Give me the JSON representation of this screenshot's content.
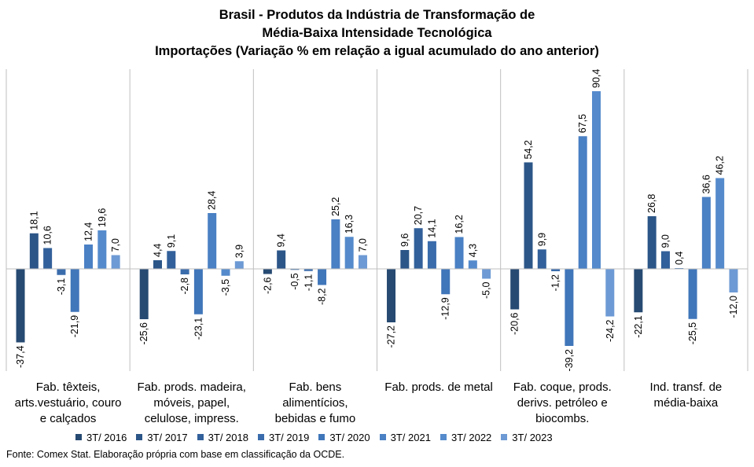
{
  "chart_data": {
    "type": "bar",
    "title_lines": [
      "Brasil - Produtos da Indústria de Transformação de",
      "Média-Baixa Intensidade Tecnológica",
      "Importações (Variação % em relação a igual acumulado do ano anterior)"
    ],
    "categories": [
      [
        "Fab. têxteis,",
        "arts.vestuário, couro",
        "e calçados"
      ],
      [
        "Fab. prods. madeira,",
        "móveis, papel,",
        "celulose, impress."
      ],
      [
        "Fab. bens",
        "alimentícios,",
        "bebidas e fumo"
      ],
      [
        "Fab. prods. de metal"
      ],
      [
        "Fab. coque, prods.",
        "derivs. petróleo e",
        "biocombs."
      ],
      [
        "Ind. transf. de",
        "média-baixa"
      ]
    ],
    "series": [
      {
        "name": "3T/ 2016",
        "color": "#264a72",
        "values": [
          -37.4,
          -25.6,
          -2.6,
          -27.2,
          -20.6,
          -22.1
        ],
        "labels": [
          "-37,4",
          "-25,6",
          "-2,6",
          "-27,2",
          "-20,6",
          "-22,1"
        ]
      },
      {
        "name": "3T/ 2017",
        "color": "#2c5688",
        "values": [
          18.1,
          4.4,
          9.4,
          9.6,
          54.2,
          26.8
        ],
        "labels": [
          "18,1",
          "4,4",
          "9,4",
          "9,6",
          "54,2",
          "26,8"
        ]
      },
      {
        "name": "3T/ 2018",
        "color": "#32609a",
        "values": [
          10.6,
          9.1,
          -0.5,
          20.7,
          9.9,
          9.0
        ],
        "labels": [
          "10,6",
          "9,1",
          "-0,5",
          "20,7",
          "9,9",
          "9,0"
        ]
      },
      {
        "name": "3T/ 2019",
        "color": "#3a6cac",
        "values": [
          -3.1,
          -2.8,
          -1.1,
          14.1,
          -1.2,
          0.4
        ],
        "labels": [
          "-3,1",
          "-2,8",
          "-1,1",
          "14,1",
          "-1,2",
          "0,4"
        ]
      },
      {
        "name": "3T/ 2020",
        "color": "#4076ba",
        "values": [
          -21.9,
          -23.1,
          -8.2,
          -12.9,
          -39.2,
          -25.5
        ],
        "labels": [
          "-21,9",
          "-23,1",
          "-8,2",
          "-12,9",
          "-39,2",
          "-25,5"
        ]
      },
      {
        "name": "3T/ 2021",
        "color": "#4a80c4",
        "values": [
          12.4,
          28.4,
          25.2,
          16.2,
          67.5,
          36.6
        ],
        "labels": [
          "12,4",
          "28,4",
          "25,2",
          "16,2",
          "67,5",
          "36,6"
        ]
      },
      {
        "name": "3T/ 2022",
        "color": "#558bcc",
        "values": [
          19.6,
          -3.5,
          16.3,
          4.3,
          90.4,
          46.2
        ],
        "labels": [
          "19,6",
          "-3,5",
          "16,3",
          "4,3",
          "90,4",
          "46,2"
        ]
      },
      {
        "name": "3T/ 2023",
        "color": "#6d9ad4",
        "values": [
          7.0,
          3.9,
          7.0,
          -5.0,
          -24.2,
          -12.0
        ],
        "labels": [
          "7,0",
          "3,9",
          "7,0",
          "-5,0",
          "-24,2",
          "-12,0"
        ]
      }
    ],
    "ylim": [
      -44,
      102
    ],
    "grid": false,
    "legend_position": "bottom"
  },
  "footer": "Fonte: Comex Stat. Elaboração própria com base em classificação da OCDE."
}
